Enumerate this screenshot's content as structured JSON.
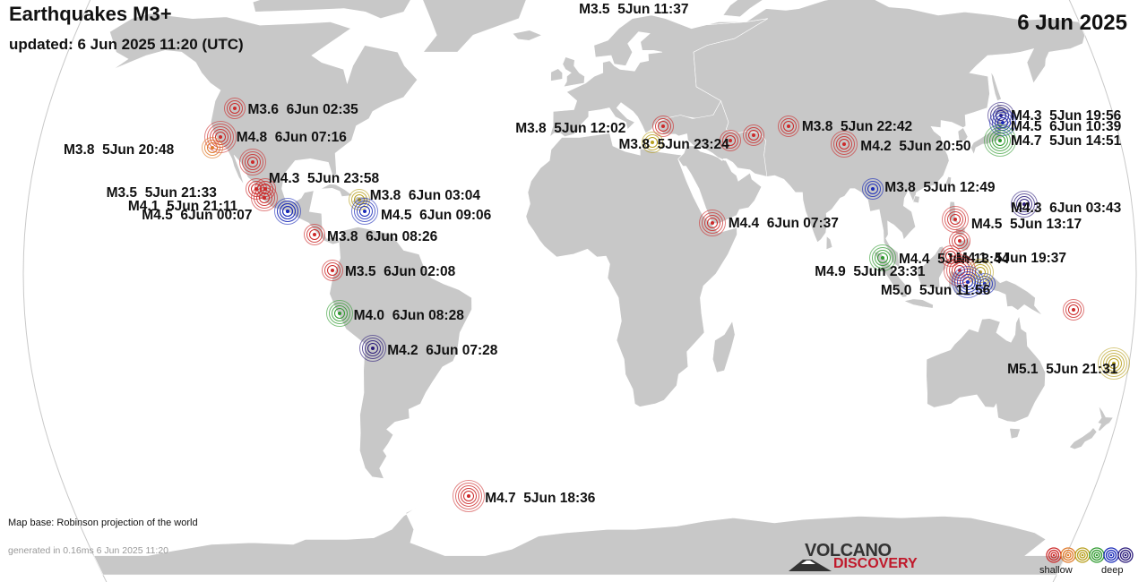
{
  "header": {
    "title": "Earthquakes M3+",
    "updated": "updated:  6 Jun 2025 11:20 (UTC)",
    "date": "6 Jun 2025"
  },
  "map": {
    "projection_note": "Map base: Robinson projection of the world",
    "generated": "generated in 0.16ms  6 Jun 2025 11:20",
    "ocean_color": "#ffffff",
    "land_color": "#c8c8c8",
    "border_color": "#ffffff"
  },
  "depth_colors": {
    "shallow": "#cc2a2a",
    "shallow_mid": "#e07a2a",
    "mid": "#b8a020",
    "mid_deep": "#2e9a2e",
    "deep": "#1a2bb8",
    "very_deep": "#2a1a7a"
  },
  "earthquakes": [
    {
      "mag": "M3.5",
      "time": "5Jun 11:37",
      "lon": -5.0,
      "lat": 82.0,
      "depth": "shallow"
    },
    {
      "mag": "M3.6",
      "time": "6Jun 02:35",
      "lon": -117.0,
      "lat": 44.0,
      "depth": "shallow"
    },
    {
      "mag": "M4.8",
      "time": "6Jun 07:16",
      "lon": -120.0,
      "lat": 36.0,
      "depth": "shallow"
    },
    {
      "mag": "M3.8",
      "time": "5Jun 20:48",
      "lon": -122.0,
      "lat": 33.0,
      "depth": "shallow_mid"
    },
    {
      "mag": "M4.3",
      "time": "5Jun 23:58",
      "lon": -108.0,
      "lat": 29.0,
      "depth": "shallow"
    },
    {
      "mag": "M3.5",
      "time": "5Jun 21:33",
      "lon": -106.0,
      "lat": 22.0,
      "depth": "shallow"
    },
    {
      "mag": "M4.1",
      "time": "5Jun 21:11",
      "lon": -103.0,
      "lat": 19.5,
      "depth": "shallow"
    },
    {
      "mag": "M4.5",
      "time": "6Jun 00:07",
      "lon": -95.0,
      "lat": 16.0,
      "depth": "deep"
    },
    {
      "mag": "M3.8",
      "time": "6Jun 03:04",
      "lon": -72.0,
      "lat": 19.0,
      "depth": "mid"
    },
    {
      "mag": "M4.5",
      "time": "6Jun 09:06",
      "lon": -70.0,
      "lat": 16.0,
      "depth": "deep"
    },
    {
      "mag": "M3.8",
      "time": "6Jun 08:26",
      "lon": -86.0,
      "lat": 10.0,
      "depth": "shallow"
    },
    {
      "mag": "M3.5",
      "time": "6Jun 02:08",
      "lon": -80.0,
      "lat": 1.0,
      "depth": "shallow"
    },
    {
      "mag": "M4.0",
      "time": "6Jun 08:28",
      "lon": -78.0,
      "lat": -10.0,
      "depth": "mid_deep"
    },
    {
      "mag": "M4.2",
      "time": "6Jun 07:28",
      "lon": -67.5,
      "lat": -19.0,
      "depth": "very_deep"
    },
    {
      "mag": "M4.7",
      "time": "5Jun 18:36",
      "lon": -39.0,
      "lat": -60.0,
      "depth": "shallow"
    },
    {
      "mag": "M3.8",
      "time": "5Jun 12:02",
      "lon": 28.0,
      "lat": 39.0,
      "depth": "shallow"
    },
    {
      "mag": "M3.8",
      "time": "5Jun 23:24",
      "lon": 24.0,
      "lat": 34.5,
      "depth": "mid"
    },
    {
      "mag": "M3.8",
      "time": "5Jun 22:42",
      "lon": 70.0,
      "lat": 39.0,
      "depth": "shallow"
    },
    {
      "mag": "M4.2",
      "time": "5Jun 20:50",
      "lon": 88.0,
      "lat": 34.0,
      "depth": "shallow"
    },
    {
      "mag": "M3.8",
      "time": "5Jun 12:49",
      "lon": 96.0,
      "lat": 22.0,
      "depth": "deep"
    },
    {
      "mag": "M4.4",
      "time": "6Jun 07:37",
      "lon": 43.0,
      "lat": 13.0,
      "depth": "shallow"
    },
    {
      "mag": "M4.4",
      "time": "5Jun 13:44",
      "lon": 98.0,
      "lat": 4.0,
      "depth": "mid_deep"
    },
    {
      "mag": "M4.3",
      "time": "5Jun 19:56",
      "lon": 142.0,
      "lat": 42.0,
      "depth": "very_deep"
    },
    {
      "mag": "M4.5",
      "time": "6Jun 10:39",
      "lon": 142.0,
      "lat": 40.0,
      "depth": "deep"
    },
    {
      "mag": "M4.7",
      "time": "5Jun 14:51",
      "lon": 140.0,
      "lat": 35.0,
      "depth": "mid_deep"
    },
    {
      "mag": "M4.3",
      "time": "6Jun 03:43",
      "lon": 145.0,
      "lat": 18.0,
      "depth": "very_deep"
    },
    {
      "mag": "M4.5",
      "time": "5Jun 13:17",
      "lon": 122.0,
      "lat": 14.0,
      "depth": "shallow"
    },
    {
      "mag": "M4.1",
      "time": "5Jun 19:37",
      "lon": 129.5,
      "lat": 0.5,
      "depth": "mid"
    },
    {
      "mag": "M4.9",
      "time": "5Jun 23:31",
      "lon": 123.0,
      "lat": 1.0,
      "depth": "shallow"
    },
    {
      "mag": "M5.0",
      "time": "5Jun 11:56",
      "lon": 125.5,
      "lat": -2.0,
      "depth": "deep"
    },
    {
      "mag": "M5.1",
      "time": "5Jun 21:31",
      "lon": 175.0,
      "lat": -23.0,
      "depth": "mid"
    }
  ],
  "extra_markers": [
    {
      "lon": 50.0,
      "lat": 35.0,
      "depth": "shallow"
    },
    {
      "lon": 58.0,
      "lat": 36.5,
      "depth": "shallow"
    },
    {
      "lon": 123.0,
      "lat": 8.5,
      "depth": "shallow"
    },
    {
      "lon": 120.0,
      "lat": 4.5,
      "depth": "shallow"
    },
    {
      "lon": 131.0,
      "lat": -2.5,
      "depth": "deep"
    },
    {
      "lon": 160.0,
      "lat": -9.0,
      "depth": "shallow"
    },
    {
      "lon": -95.0,
      "lat": 16.0,
      "depth": "deep"
    },
    {
      "lon": -103.0,
      "lat": 22.0,
      "depth": "shallow"
    }
  ],
  "logo": {
    "top_text": "VOLCANO",
    "bottom_text": "DISCOVERY"
  },
  "legend": {
    "shallow_label": "shallow",
    "deep_label": "deep"
  }
}
